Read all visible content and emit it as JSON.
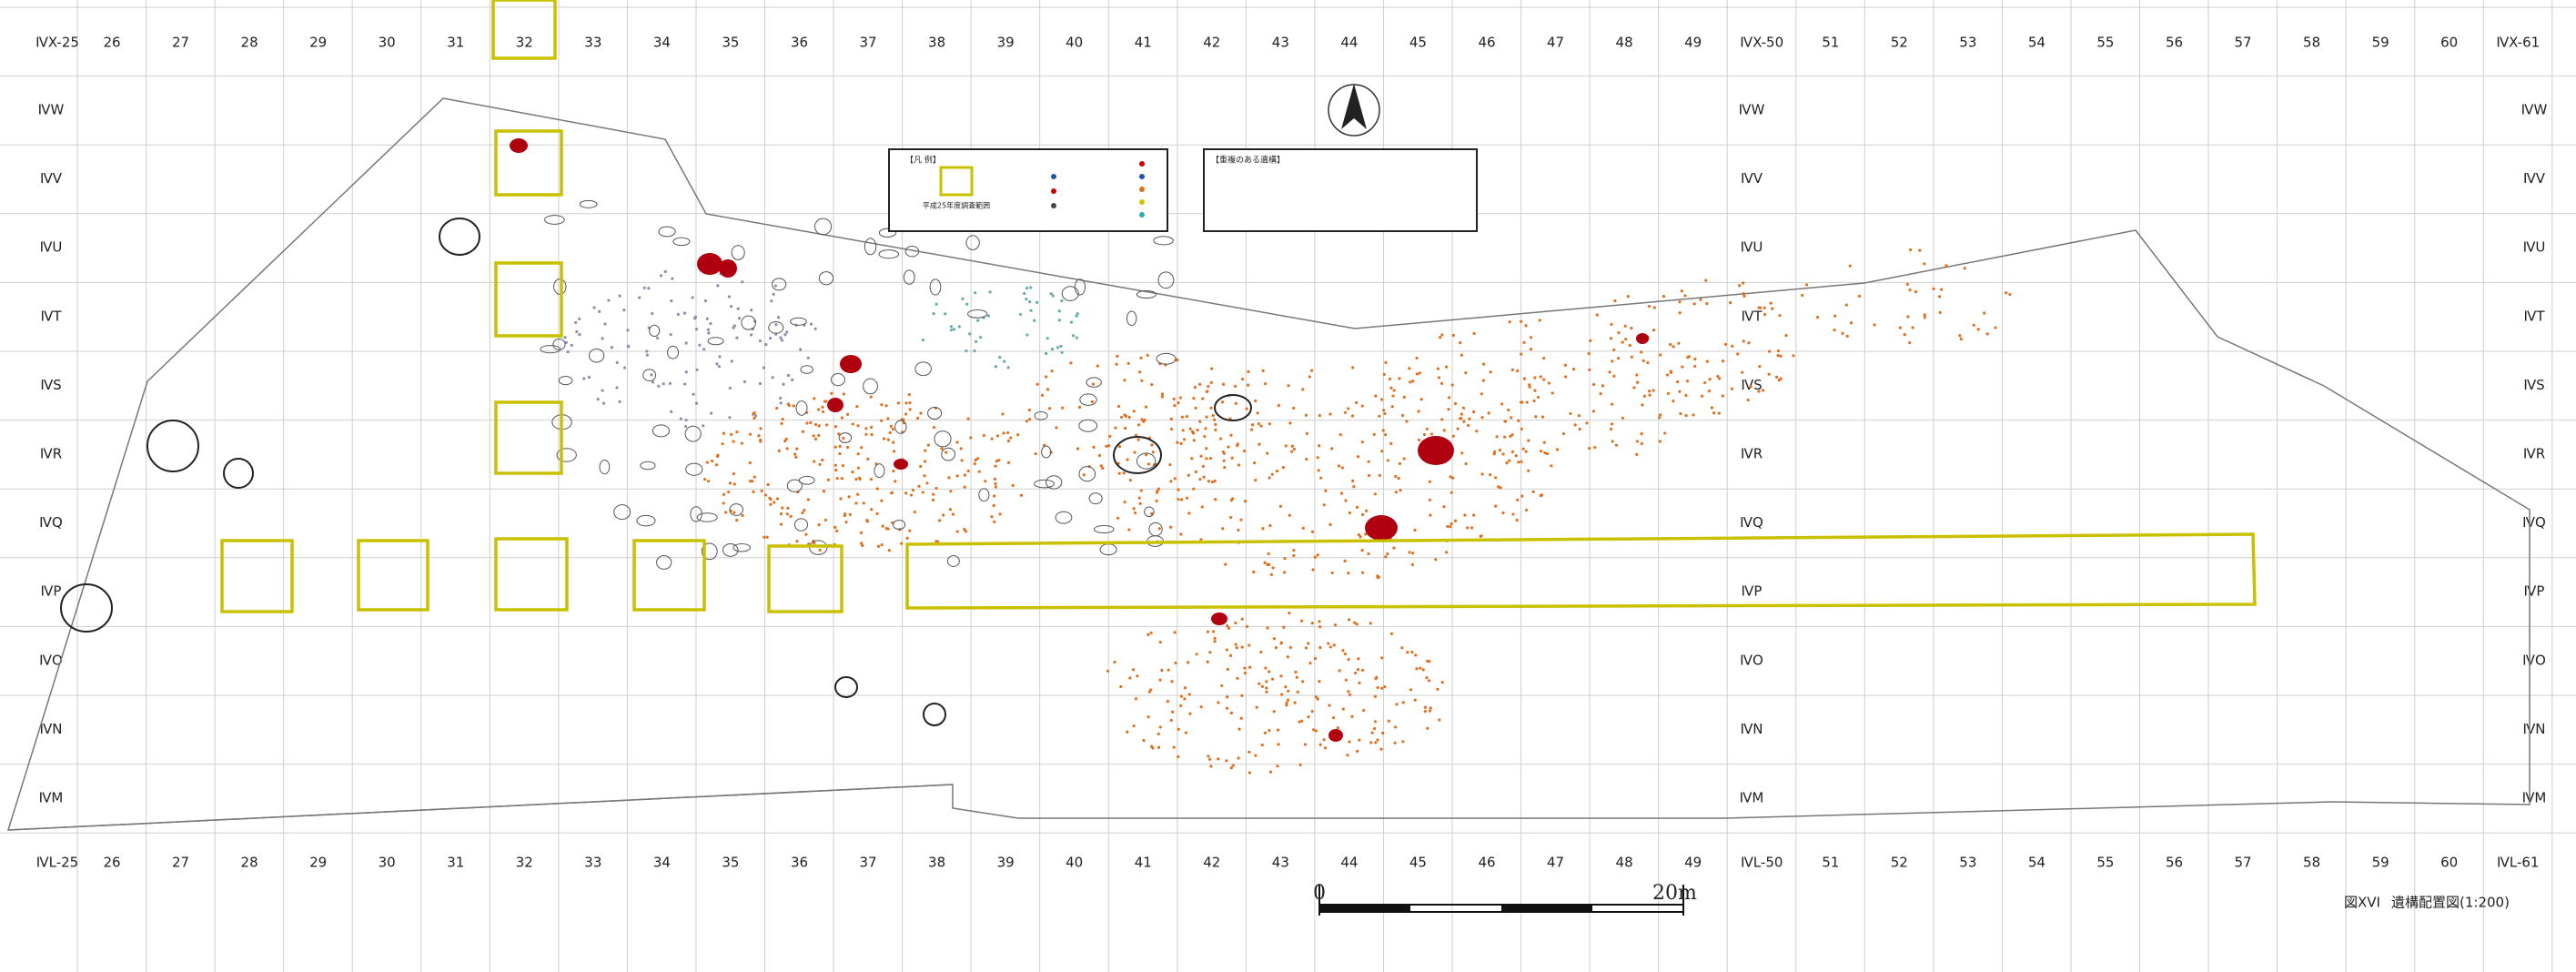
{
  "grid": {
    "columns_top": [
      "ⅣX-25",
      "26",
      "27",
      "28",
      "29",
      "30",
      "31",
      "32",
      "33",
      "34",
      "35",
      "36",
      "37",
      "38",
      "39",
      "40",
      "41",
      "42",
      "43",
      "44",
      "45",
      "46",
      "47",
      "48",
      "49",
      "ⅣX-50",
      "51",
      "52",
      "53",
      "54",
      "55",
      "56",
      "57",
      "58",
      "59",
      "60",
      "ⅣX-61"
    ],
    "columns_bottom": [
      "ⅣL-25",
      "26",
      "27",
      "28",
      "29",
      "30",
      "31",
      "32",
      "33",
      "34",
      "35",
      "36",
      "37",
      "38",
      "39",
      "40",
      "41",
      "42",
      "43",
      "44",
      "45",
      "46",
      "47",
      "48",
      "49",
      "ⅣL-50",
      "51",
      "52",
      "53",
      "54",
      "55",
      "56",
      "57",
      "58",
      "59",
      "60",
      "ⅣL-61"
    ],
    "rows": [
      "ⅣW",
      "ⅣV",
      "ⅣU",
      "ⅣT",
      "ⅣS",
      "ⅣR",
      "ⅣQ",
      "ⅣP",
      "ⅣO",
      "ⅣN",
      "ⅣM"
    ]
  },
  "legend": {
    "title": "【凡 例】",
    "survey_area": "平成25年度調査範囲"
  },
  "overlap_legend": {
    "title": "【重複のある遺構】"
  },
  "scale_bar": {
    "start": "0",
    "end": "20m"
  },
  "caption": {
    "figure": "図XVI",
    "title": "遺構配置図(1:200)"
  }
}
